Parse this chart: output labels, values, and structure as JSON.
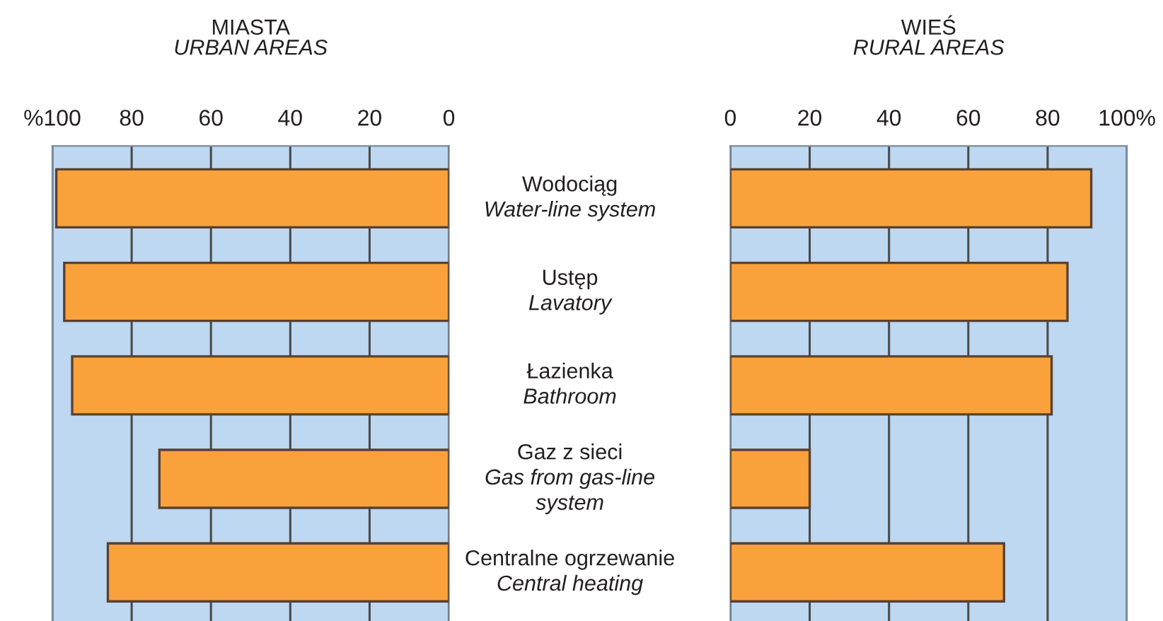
{
  "chart_data": [
    {
      "type": "bar",
      "orientation": "horizontal",
      "title": "MIASTA",
      "subtitle": "URBAN AREAS",
      "categories": [
        "Wodociąg\nWater-line system",
        "Ustęp\nLavatory",
        "Łazienka\nBathroom",
        "Gaz z sieci\nGas from gas-line\nsystem",
        "Centralne ogrzewanie\nCentral heating"
      ],
      "values": [
        99,
        97,
        95,
        73,
        86
      ],
      "color": "#f9a23c",
      "bands": [
        {
          "axis": "x",
          "from": 0,
          "to": 100,
          "color": "#bdd8f0"
        }
      ],
      "xlim": [
        100,
        0
      ],
      "xticks": [
        {
          "value": 100,
          "label": "%100"
        },
        80,
        60,
        40,
        20,
        0
      ],
      "grid": "x"
    },
    {
      "type": "bar",
      "orientation": "horizontal",
      "title": "WIEŚ",
      "subtitle": "RURAL AREAS",
      "categories": [
        null,
        null,
        null,
        null,
        null
      ],
      "values": [
        91,
        85,
        81,
        20,
        69
      ],
      "color": "#f9a23c",
      "bands": [
        {
          "axis": "x",
          "from": 0,
          "to": 100,
          "color": "#bdd8f0"
        }
      ],
      "xlim": [
        0,
        100
      ],
      "xticks": [
        0,
        20,
        40,
        60,
        80,
        {
          "value": 100,
          "label": "100%"
        }
      ],
      "grid": "x",
      "tick_labels": "x"
    }
  ]
}
